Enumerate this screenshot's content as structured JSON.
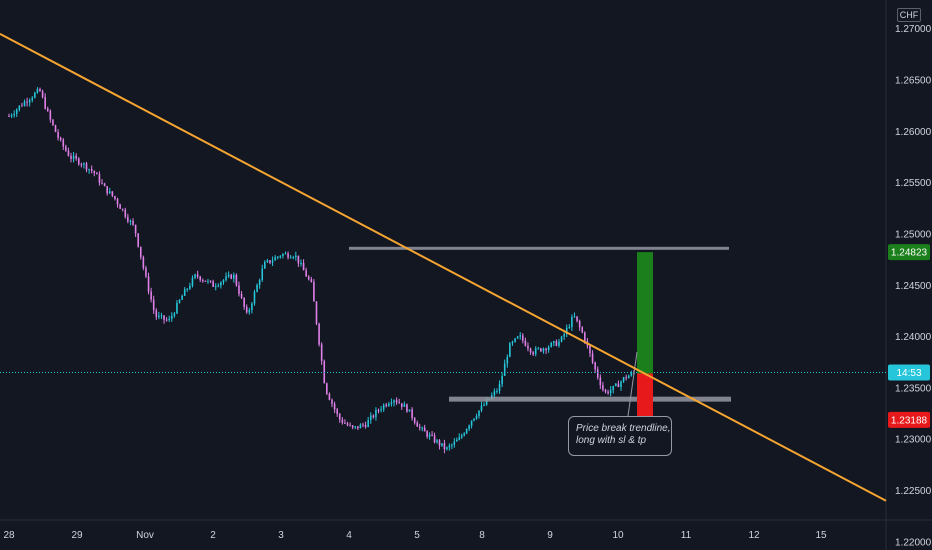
{
  "currency_label": "CHF",
  "annotation": {
    "line1": "Price break trendline,",
    "line2": "long with sl & tp"
  },
  "colors": {
    "background": "#131722",
    "up_candle": "#26c6da",
    "down_candle": "#e080e8",
    "trendline": "#f7a531",
    "level_lines": "#9598a1",
    "take_profit": "#1b7f1b",
    "stop_loss": "#e8191b",
    "current_price": "#26c6da"
  },
  "chart_data": {
    "type": "candlestick",
    "title": "",
    "y_axis_ticks": [
      "1.27000",
      "1.26500",
      "1.26000",
      "1.25500",
      "1.25000",
      "1.24500",
      "1.24000",
      "1.23500",
      "1.23000",
      "1.22500",
      "1.22000"
    ],
    "ylim": [
      1.2192,
      1.2728
    ],
    "x_axis_labels": [
      "28",
      "29",
      "Nov",
      "2",
      "3",
      "4",
      "5",
      "8",
      "9",
      "10",
      "11",
      "12",
      "15"
    ],
    "price_badges": [
      {
        "name": "take-profit",
        "value": "1.24823",
        "color": "#1b7f1b"
      },
      {
        "name": "current-price",
        "value": "14:53",
        "color": "#26c6da"
      },
      {
        "name": "stop-loss",
        "value": "1.23188",
        "color": "#e8191b"
      }
    ],
    "current_price": 1.2365,
    "resistance_level": 1.2486,
    "support_level": 1.2339,
    "long_position": {
      "entry": 1.2364,
      "take_profit": 1.24823,
      "stop_loss": 1.23188
    },
    "trendline": {
      "start_price": 1.2695,
      "end_price": 1.224
    },
    "close_path": [
      [
        0,
        1.2615
      ],
      [
        0.25,
        1.263
      ],
      [
        0.45,
        1.264
      ],
      [
        0.6,
        1.2612
      ],
      [
        0.75,
        1.259
      ],
      [
        0.9,
        1.2575
      ],
      [
        1.05,
        1.257
      ],
      [
        1.25,
        1.256
      ],
      [
        1.4,
        1.2545
      ],
      [
        1.55,
        1.2535
      ],
      [
        1.7,
        1.252
      ],
      [
        1.85,
        1.2505
      ],
      [
        2.0,
        1.246
      ],
      [
        2.15,
        1.242
      ],
      [
        2.35,
        1.2415
      ],
      [
        2.55,
        1.244
      ],
      [
        2.75,
        1.246
      ],
      [
        3.0,
        1.245
      ],
      [
        3.3,
        1.246
      ],
      [
        3.5,
        1.242
      ],
      [
        3.75,
        1.247
      ],
      [
        4.0,
        1.248
      ],
      [
        4.2,
        1.248
      ],
      [
        4.45,
        1.245
      ],
      [
        4.65,
        1.235
      ],
      [
        4.85,
        1.232
      ],
      [
        5.05,
        1.231
      ],
      [
        5.25,
        1.2315
      ],
      [
        5.45,
        1.233
      ],
      [
        5.65,
        1.234
      ],
      [
        5.85,
        1.233
      ],
      [
        6.05,
        1.231
      ],
      [
        6.25,
        1.23
      ],
      [
        6.45,
        1.229
      ],
      [
        6.65,
        1.23
      ],
      [
        6.85,
        1.232
      ],
      [
        7.05,
        1.2335
      ],
      [
        7.25,
        1.235
      ],
      [
        7.4,
        1.239
      ],
      [
        7.55,
        1.24
      ],
      [
        7.75,
        1.2385
      ],
      [
        7.95,
        1.239
      ],
      [
        8.15,
        1.2395
      ],
      [
        8.35,
        1.242
      ],
      [
        8.5,
        1.24
      ],
      [
        8.65,
        1.237
      ],
      [
        8.8,
        1.2345
      ],
      [
        8.95,
        1.235
      ],
      [
        9.1,
        1.236
      ],
      [
        9.25,
        1.2365
      ]
    ]
  }
}
